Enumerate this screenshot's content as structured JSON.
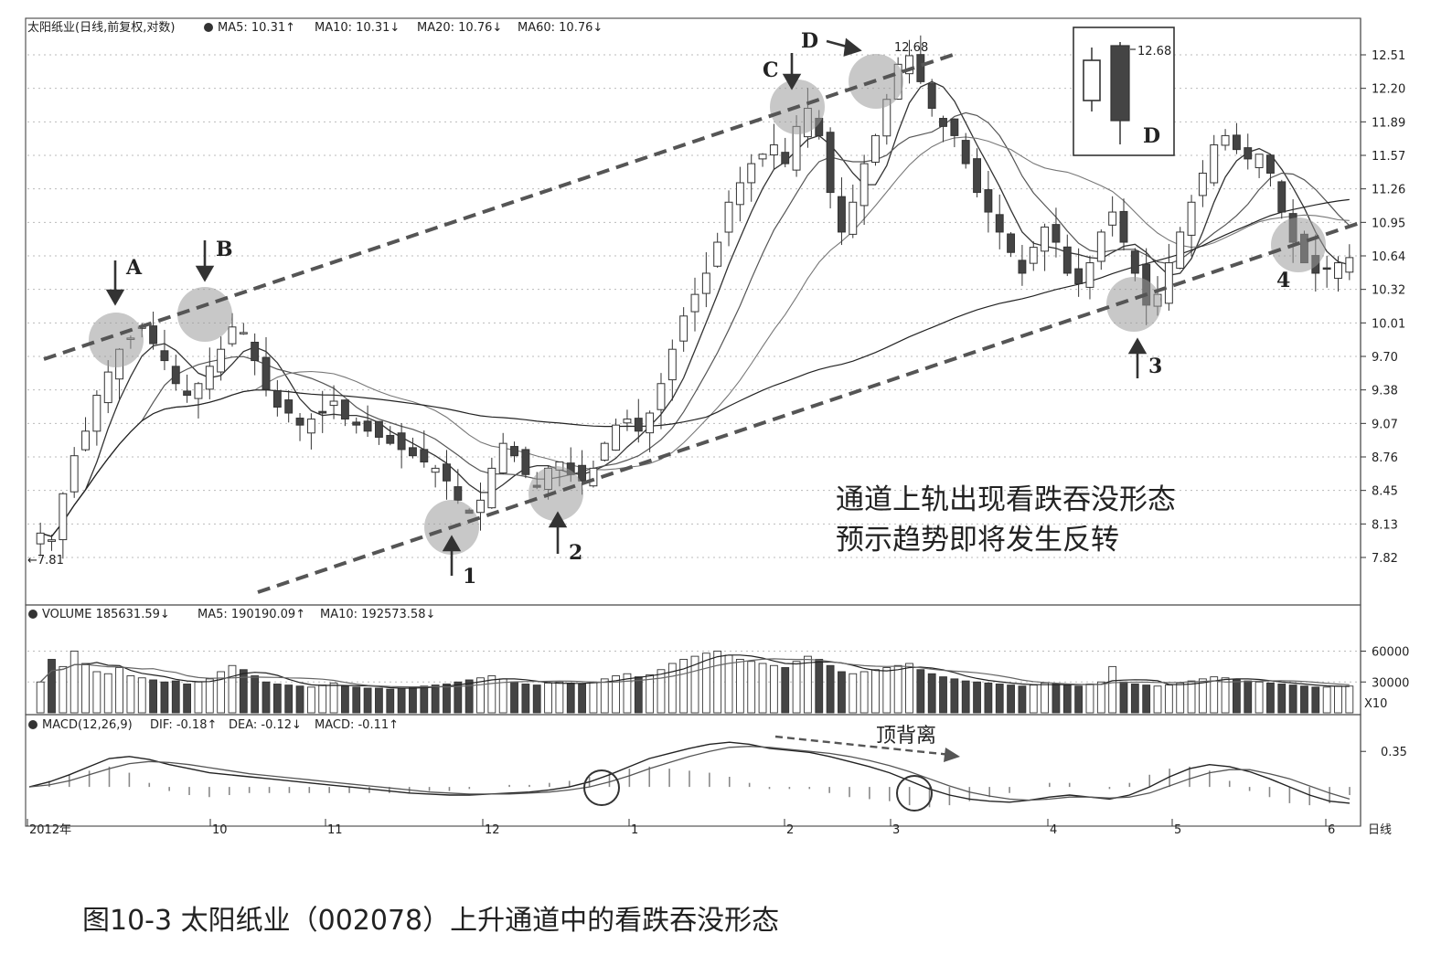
{
  "figure_caption": "图10-3 太阳纸业（002078）上升通道中的看跌吞没形态",
  "chart_data": [
    {
      "type": "candlestick",
      "header": {
        "name": "太阳纸业(日线,前复权,对数)",
        "ma5": "MA5: 10.31↑",
        "ma10": "MA10: 10.31↓",
        "ma20": "MA20: 10.76↓",
        "ma60": "MA60: 10.76↓"
      },
      "y_ticks": [
        "12.51",
        "12.20",
        "11.89",
        "11.57",
        "11.26",
        "10.95",
        "10.64",
        "10.32",
        "10.01",
        "9.70",
        "9.38",
        "9.07",
        "8.76",
        "8.45",
        "8.13",
        "7.82"
      ],
      "ylim": [
        7.6,
        12.8
      ],
      "high_label": "12.68",
      "low_label": "←7.81",
      "pattern_points": [
        "A",
        "B",
        "C",
        "D"
      ],
      "support_points": [
        "1",
        "2",
        "3",
        "4"
      ],
      "annotation_lines": [
        "通道上轨出现看跌吞没形态",
        "预示趋势即将发生反转"
      ],
      "inset_label": "D",
      "inset_high": "12.68",
      "series_close": [
        8.0,
        7.95,
        8.3,
        8.6,
        8.8,
        9.1,
        9.3,
        9.5,
        9.6,
        9.7,
        9.55,
        9.4,
        9.2,
        9.1,
        9.2,
        9.35,
        9.5,
        9.7,
        9.65,
        9.4,
        9.15,
        9.0,
        8.95,
        8.85,
        8.9,
        8.95,
        9.05,
        8.9,
        8.85,
        8.8,
        8.75,
        8.7,
        8.65,
        8.6,
        8.55,
        8.5,
        8.4,
        8.25,
        8.15,
        8.25,
        8.5,
        8.7,
        8.6,
        8.45,
        8.35,
        8.5,
        8.55,
        8.45,
        8.4,
        8.5,
        8.7,
        8.85,
        8.9,
        8.8,
        8.95,
        9.2,
        9.5,
        9.8,
        10.0,
        10.2,
        10.5,
        10.9,
        11.1,
        11.3,
        11.4,
        11.5,
        11.3,
        11.7,
        11.9,
        11.6,
        11.0,
        10.6,
        10.9,
        11.3,
        11.6,
        12.0,
        12.4,
        12.5,
        12.2,
        11.9,
        11.7,
        11.6,
        11.3,
        11.0,
        10.8,
        10.6,
        10.4,
        10.2,
        10.45,
        10.65,
        10.5,
        10.2,
        10.1,
        10.3,
        10.6,
        10.8,
        10.5,
        10.2,
        9.9,
        10.0,
        10.3,
        10.6,
        10.9,
        11.2,
        11.5,
        11.6,
        11.45,
        11.35,
        11.4,
        11.2,
        10.8,
        10.5,
        10.3,
        10.2,
        10.25,
        10.3,
        10.35
      ]
    },
    {
      "type": "bar",
      "header": {
        "name": "VOLUME 185631.59↓",
        "ma5": "MA5: 190190.09↑",
        "ma10": "MA10: 192573.58↓"
      },
      "y_ticks": [
        "60000",
        "30000"
      ],
      "unit": "X10",
      "ylim": [
        0,
        80000
      ],
      "values": [
        30000,
        52000,
        45000,
        60000,
        48000,
        40000,
        38000,
        44000,
        36000,
        34000,
        32000,
        30000,
        31000,
        28000,
        30000,
        33000,
        40000,
        46000,
        42000,
        36000,
        30000,
        28000,
        27000,
        26000,
        25000,
        27000,
        29000,
        26000,
        25000,
        24000,
        24000,
        23000,
        24000,
        25000,
        26000,
        27000,
        28000,
        30000,
        32000,
        34000,
        36000,
        33000,
        30000,
        28000,
        27000,
        29000,
        30000,
        29000,
        28000,
        30000,
        33000,
        36000,
        38000,
        35000,
        37000,
        42000,
        48000,
        52000,
        55000,
        58000,
        60000,
        56000,
        52000,
        50000,
        48000,
        46000,
        44000,
        50000,
        55000,
        52000,
        46000,
        40000,
        38000,
        40000,
        42000,
        44000,
        46000,
        48000,
        42000,
        38000,
        35000,
        33000,
        31000,
        30000,
        29000,
        28000,
        27000,
        26000,
        27000,
        29000,
        28000,
        27000,
        26000,
        28000,
        30000,
        45000,
        30000,
        28000,
        27000,
        26000,
        27000,
        29000,
        31000,
        33000,
        35000,
        34000,
        32000,
        31000,
        30000,
        29000,
        28000,
        27000,
        26000,
        25000,
        25000,
        26000,
        26000
      ]
    },
    {
      "type": "line",
      "header": {
        "name": "MACD(12,26,9)",
        "dif": "DIF: -0.18↑",
        "dea": "DEA: -0.12↓",
        "macd": "MACD: -0.11↑"
      },
      "y_ticks": [
        "0.35"
      ],
      "annotation": "顶背离",
      "ylim": [
        -0.35,
        0.55
      ],
      "dif": [
        0.0,
        0.05,
        0.12,
        0.2,
        0.28,
        0.3,
        0.27,
        0.22,
        0.18,
        0.14,
        0.12,
        0.1,
        0.08,
        0.06,
        0.04,
        0.02,
        0.0,
        -0.02,
        -0.04,
        -0.06,
        -0.07,
        -0.08,
        -0.08,
        -0.07,
        -0.06,
        -0.05,
        -0.03,
        0.0,
        0.05,
        0.12,
        0.2,
        0.28,
        0.33,
        0.38,
        0.42,
        0.44,
        0.42,
        0.38,
        0.36,
        0.34,
        0.3,
        0.25,
        0.2,
        0.14,
        0.06,
        -0.02,
        -0.08,
        -0.12,
        -0.14,
        -0.15,
        -0.13,
        -0.1,
        -0.08,
        -0.1,
        -0.12,
        -0.08,
        0.0,
        0.1,
        0.18,
        0.22,
        0.2,
        0.15,
        0.08,
        0.0,
        -0.08,
        -0.14,
        -0.16
      ],
      "dea": [
        0.0,
        0.02,
        0.06,
        0.12,
        0.18,
        0.23,
        0.25,
        0.24,
        0.22,
        0.19,
        0.16,
        0.13,
        0.11,
        0.09,
        0.07,
        0.05,
        0.03,
        0.01,
        -0.01,
        -0.03,
        -0.05,
        -0.06,
        -0.07,
        -0.07,
        -0.07,
        -0.06,
        -0.05,
        -0.03,
        0.0,
        0.05,
        0.11,
        0.18,
        0.24,
        0.3,
        0.35,
        0.39,
        0.4,
        0.39,
        0.37,
        0.35,
        0.33,
        0.3,
        0.26,
        0.21,
        0.15,
        0.08,
        0.01,
        -0.05,
        -0.09,
        -0.12,
        -0.13,
        -0.12,
        -0.1,
        -0.1,
        -0.11,
        -0.1,
        -0.06,
        0.01,
        0.08,
        0.14,
        0.17,
        0.17,
        0.13,
        0.08,
        0.01,
        -0.06,
        -0.12
      ]
    }
  ],
  "x_axis_labels": [
    "2012年",
    "10",
    "11",
    "12",
    "1",
    "2",
    "3",
    "4",
    "5",
    "6"
  ],
  "period_label": "日线"
}
